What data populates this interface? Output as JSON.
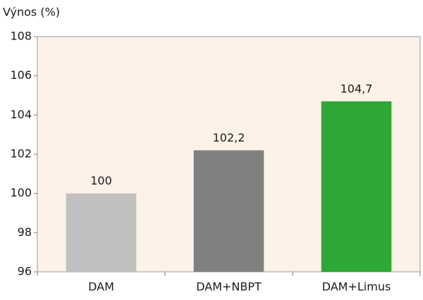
{
  "chart_data": {
    "type": "bar",
    "y_label": "Výnos (%)",
    "categories": [
      "DAM",
      "DAM+NBPT",
      "DAM+Limus"
    ],
    "values": [
      100,
      102.2,
      104.7
    ],
    "value_labels": [
      "100",
      "102,2",
      "104,7"
    ],
    "colors": [
      "#c0c0c0",
      "#808080",
      "#2ea836"
    ],
    "ylim": [
      96,
      108
    ],
    "yticks": [
      96,
      98,
      100,
      102,
      104,
      106,
      108
    ],
    "grid": false
  }
}
